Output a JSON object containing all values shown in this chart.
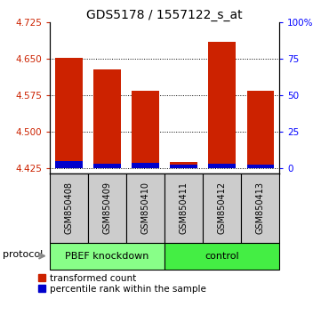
{
  "title": "GDS5178 / 1557122_s_at",
  "samples": [
    "GSM850408",
    "GSM850409",
    "GSM850410",
    "GSM850411",
    "GSM850412",
    "GSM850413"
  ],
  "red_tops": [
    4.652,
    4.628,
    4.585,
    4.438,
    4.685,
    4.585
  ],
  "blue_tops": [
    4.44,
    4.434,
    4.436,
    4.432,
    4.434,
    4.433
  ],
  "bar_bottom": 4.425,
  "ylim_min": 4.415,
  "ylim_max": 4.725,
  "yticks_left": [
    4.425,
    4.5,
    4.575,
    4.65,
    4.725
  ],
  "yticks_right": [
    0,
    25,
    50,
    75,
    100
  ],
  "groups": [
    {
      "label": "PBEF knockdown",
      "indices": [
        0,
        1,
        2
      ],
      "color": "#88ff88"
    },
    {
      "label": "control",
      "indices": [
        3,
        4,
        5
      ],
      "color": "#44ee44"
    }
  ],
  "red_color": "#cc2200",
  "blue_color": "#0000cc",
  "bg_color": "#ffffff",
  "protocol_label": "protocol",
  "legend_red": "transformed count",
  "legend_blue": "percentile rank within the sample",
  "bar_width": 0.7,
  "title_fontsize": 10,
  "tick_fontsize": 7.5,
  "label_fontsize": 8
}
